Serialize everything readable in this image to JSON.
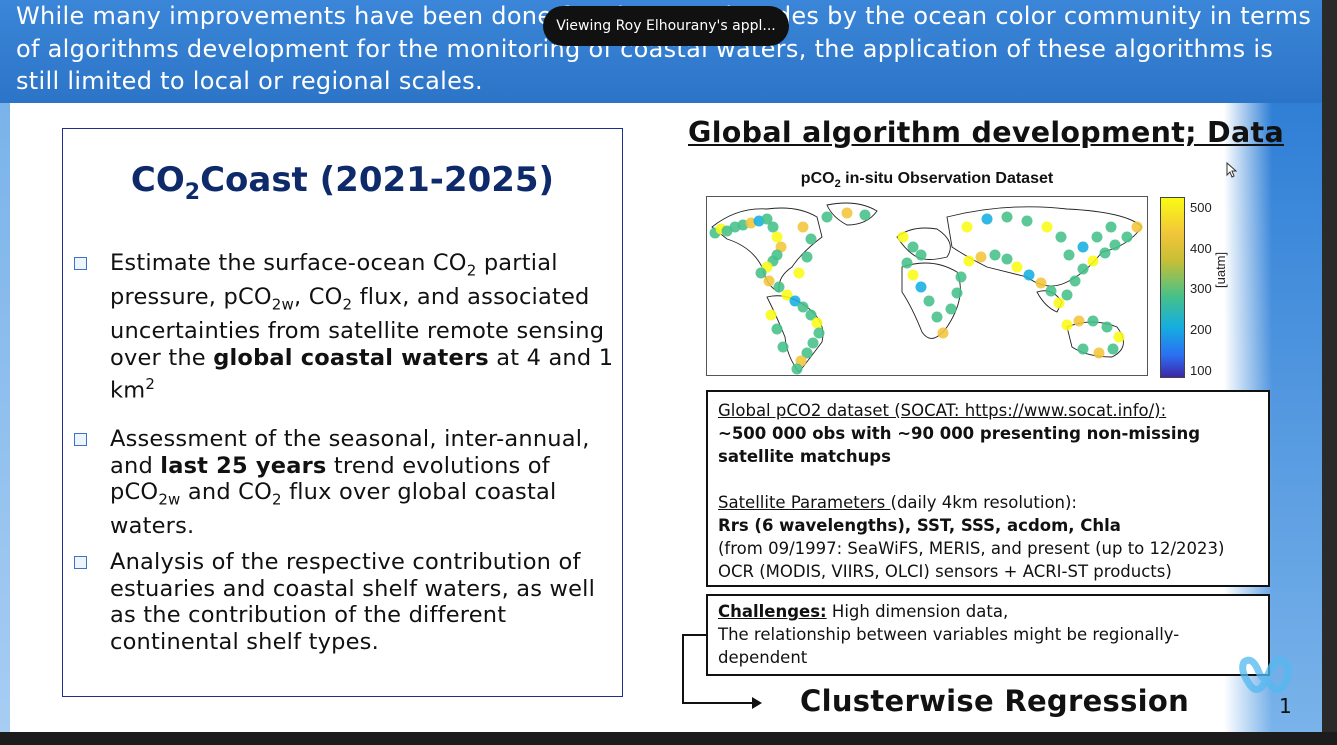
{
  "banner": {
    "text": "While many improvements have been done for almost 3 decades by the ocean color community in terms of algorithms development for the monitoring of coastal waters, the application of these algorithms is still limited to local or regional scales."
  },
  "overlay": {
    "viewing_label": "Viewing Roy Elhourany's appl..."
  },
  "left": {
    "title_pre": "CO",
    "title_sub": "2",
    "title_post": "Coast (2021-2025)"
  },
  "right": {
    "title": "Global algorithm development; Data",
    "map_title_pre": "pCO",
    "map_title_sub": "2",
    "map_title_post": " in-situ Observation Dataset",
    "colorbar": {
      "ticks": [
        "500",
        "400",
        "300",
        "200",
        "100"
      ],
      "unit": "[uatm]",
      "colors": [
        "#f9fa14",
        "#f2c53a",
        "#46c08a",
        "#15aee0",
        "#3e26a8"
      ]
    }
  },
  "data_box": {
    "line1": "Global pCO2 dataset (SOCAT: https://www.socat.info/):",
    "line2": "~500 000 obs with ~90 000 presenting non-missing satellite matchups",
    "line3_u": "Satellite Parameters ",
    "line3_rest": "(daily 4km resolution):",
    "line4": "Rrs (6 wavelengths), SST, SSS, acdom, Chla",
    "line5": "(from 09/1997: SeaWiFS, MERIS, and present (up to 12/2023) OCR (MODIS, VIIRS, OLCI) sensors + ACRI-ST products)"
  },
  "challenges": {
    "label": "Challenges:",
    "text1": " High dimension data,",
    "text2": "The relationship between variables might be regionally-dependent"
  },
  "cluster": {
    "label": "Clusterwise Regression"
  },
  "slide_number": "1"
}
